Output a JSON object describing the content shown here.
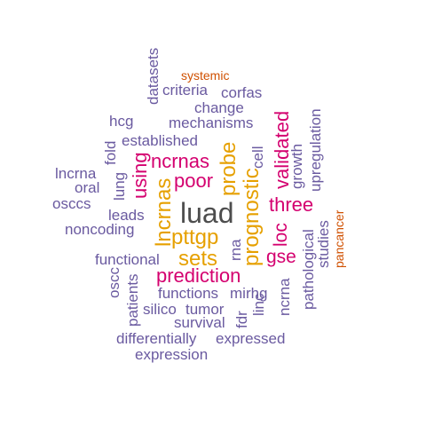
{
  "colors": {
    "tier1": "#4d4d4d",
    "tier2": "#e6a000",
    "tier3": "#d4006f",
    "tier4": "#6a5aa0",
    "tier5": "#d05000"
  },
  "words": [
    {
      "text": "luad",
      "tier": "tier1"
    },
    {
      "text": "lncrnas",
      "tier": "tier2"
    },
    {
      "text": "pttgp",
      "tier": "tier2"
    },
    {
      "text": "sets",
      "tier": "tier2"
    },
    {
      "text": "prognostic",
      "tier": "tier2"
    },
    {
      "text": "probe",
      "tier": "tier2"
    },
    {
      "text": "prediction",
      "tier": "tier3"
    },
    {
      "text": "three",
      "tier": "tier3"
    },
    {
      "text": "ncrnas",
      "tier": "tier3"
    },
    {
      "text": "poor",
      "tier": "tier3"
    },
    {
      "text": "using",
      "tier": "tier3"
    },
    {
      "text": "validated",
      "tier": "tier3"
    },
    {
      "text": "loc",
      "tier": "tier3"
    },
    {
      "text": "gse",
      "tier": "tier3"
    },
    {
      "text": "systemic",
      "tier": "tier5"
    },
    {
      "text": "pancancer",
      "tier": "tier5"
    },
    {
      "text": "datasets",
      "tier": "tier4"
    },
    {
      "text": "criteria",
      "tier": "tier4"
    },
    {
      "text": "corfas",
      "tier": "tier4"
    },
    {
      "text": "change",
      "tier": "tier4"
    },
    {
      "text": "hcg",
      "tier": "tier4"
    },
    {
      "text": "mechanisms",
      "tier": "tier4"
    },
    {
      "text": "fold",
      "tier": "tier4"
    },
    {
      "text": "established",
      "tier": "tier4"
    },
    {
      "text": "cell",
      "tier": "tier4"
    },
    {
      "text": "growth",
      "tier": "tier4"
    },
    {
      "text": "upregulation",
      "tier": "tier4"
    },
    {
      "text": "lncrna",
      "tier": "tier4"
    },
    {
      "text": "oral",
      "tier": "tier4"
    },
    {
      "text": "lung",
      "tier": "tier4"
    },
    {
      "text": "oscc",
      "tier": "tier4"
    },
    {
      "text": "osccs",
      "tier": "tier4"
    },
    {
      "text": "leads",
      "tier": "tier4"
    },
    {
      "text": "noncoding",
      "tier": "tier4"
    },
    {
      "text": "rna",
      "tier": "tier4"
    },
    {
      "text": "functional",
      "tier": "tier4"
    },
    {
      "text": "pathological",
      "tier": "tier4"
    },
    {
      "text": "studies",
      "tier": "tier4"
    },
    {
      "text": "patients",
      "tier": "tier4"
    },
    {
      "text": "functions",
      "tier": "tier4"
    },
    {
      "text": "mirhg",
      "tier": "tier4"
    },
    {
      "text": "silico",
      "tier": "tier4"
    },
    {
      "text": "tumor",
      "tier": "tier4"
    },
    {
      "text": "fdr",
      "tier": "tier4"
    },
    {
      "text": "linc",
      "tier": "tier4"
    },
    {
      "text": "ncrna",
      "tier": "tier4"
    },
    {
      "text": "survival",
      "tier": "tier4"
    },
    {
      "text": "differentially",
      "tier": "tier4"
    },
    {
      "text": "expressed",
      "tier": "tier4"
    },
    {
      "text": "expression",
      "tier": "tier4"
    }
  ]
}
